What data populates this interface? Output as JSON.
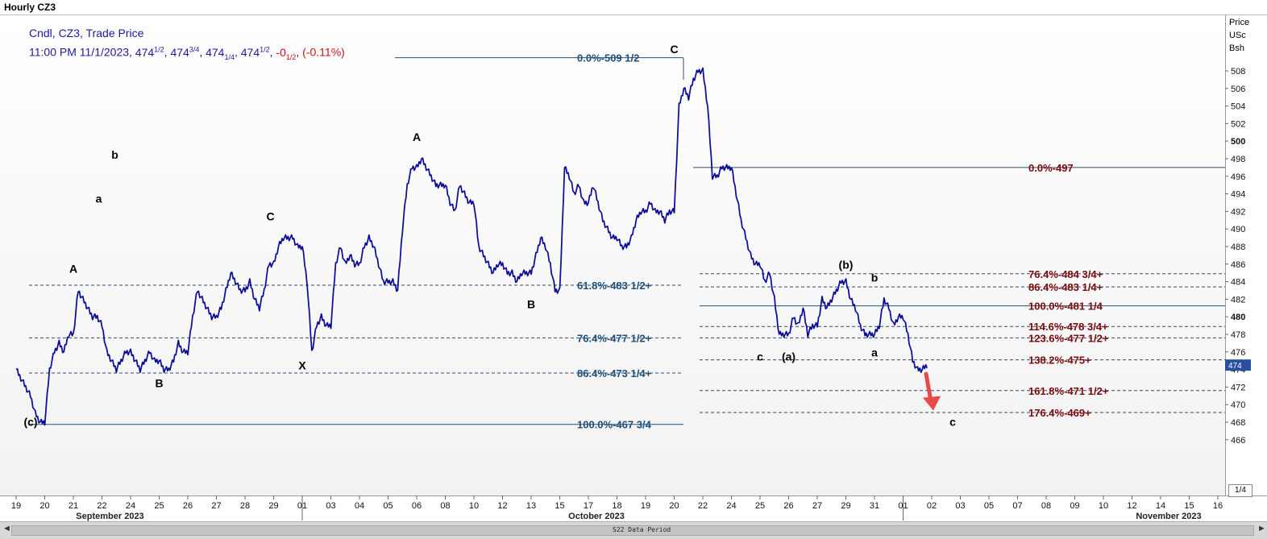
{
  "window_title": "Hourly CZ3",
  "legend": {
    "line1": "Cndl, CZ3, Trade Price",
    "line2_prefix": "11:00 PM 11/1/2023, ",
    "open_int": "474",
    "open_frac": "1/2",
    "high_int": "474",
    "high_frac": "3/4",
    "low_int": "474",
    "low_frac": "1/4",
    "close_int": "474",
    "close_frac": "1/2",
    "change_int": "-0",
    "change_frac": "1/2",
    "change_pct": "(-0.11%)"
  },
  "axis_title": [
    "Price",
    "USc",
    "Bsh"
  ],
  "current_price_label": "474",
  "page_label": "1/4",
  "scroll_left": "◄",
  "scroll_right": "►",
  "data_period_label": "S22 Data Period",
  "colors": {
    "price": "#0a0ab4",
    "fib_blue": "#1f4e79",
    "fib_red": "#7b0a0a",
    "level_line": "#2a4d7a",
    "arrow": "#e84a4a"
  },
  "chart_data": {
    "type": "candlestick",
    "title": "Hourly CZ3",
    "ylabel": "Price USc Bsh",
    "ylim": [
      465,
      511
    ],
    "y_ticks": [
      466,
      468,
      470,
      472,
      474,
      476,
      478,
      480,
      482,
      484,
      486,
      488,
      490,
      492,
      494,
      496,
      498,
      500,
      502,
      504,
      506,
      508
    ],
    "x_ticks": [
      "19",
      "20",
      "21",
      "22",
      "24",
      "25",
      "26",
      "27",
      "28",
      "29",
      "01",
      "03",
      "04",
      "05",
      "06",
      "08",
      "10",
      "12",
      "13",
      "15",
      "17",
      "18",
      "19",
      "20",
      "22",
      "24",
      "25",
      "26",
      "27",
      "29",
      "31",
      "01",
      "02",
      "03",
      "05",
      "07",
      "08",
      "09",
      "10",
      "12",
      "14",
      "15",
      "16"
    ],
    "month_labels": [
      "September 2023",
      "October 2023",
      "November 2023"
    ],
    "price_path": [
      {
        "d": "19",
        "p": [
          474,
          473,
          472,
          471,
          469,
          468
        ]
      },
      {
        "d": "20",
        "p": [
          468,
          474,
          476,
          477,
          476,
          478
        ]
      },
      {
        "d": "21",
        "p": [
          478,
          483,
          482,
          481,
          480,
          480
        ]
      },
      {
        "d": "22",
        "p": [
          479,
          476,
          475,
          474,
          475,
          476
        ]
      },
      {
        "d": "24",
        "p": [
          476,
          475,
          474,
          475,
          476,
          475
        ]
      },
      {
        "d": "25",
        "p": [
          475,
          474,
          474,
          475,
          477,
          476
        ]
      },
      {
        "d": "26",
        "p": [
          476,
          480,
          483,
          482,
          481,
          480
        ]
      },
      {
        "d": "27",
        "p": [
          480,
          481,
          483,
          485,
          484,
          483
        ]
      },
      {
        "d": "28",
        "p": [
          483,
          484,
          482,
          481,
          483,
          486
        ]
      },
      {
        "d": "29",
        "p": [
          486,
          488,
          489,
          489,
          489,
          488
        ]
      },
      {
        "d": "01",
        "p": [
          488,
          484,
          476,
          479,
          480,
          479
        ]
      },
      {
        "d": "03",
        "p": [
          479,
          486,
          488,
          486,
          487,
          486
        ]
      },
      {
        "d": "04",
        "p": [
          486,
          488,
          489,
          488,
          486,
          484
        ]
      },
      {
        "d": "05",
        "p": [
          484,
          484,
          483,
          490,
          495,
          497
        ]
      },
      {
        "d": "06",
        "p": [
          497,
          498,
          497,
          496,
          495,
          495
        ]
      },
      {
        "d": "08",
        "p": [
          495,
          493,
          492,
          495,
          494,
          493
        ]
      },
      {
        "d": "10",
        "p": [
          493,
          488,
          487,
          486,
          485,
          486
        ]
      },
      {
        "d": "12",
        "p": [
          486,
          485,
          485,
          484,
          485,
          485
        ]
      },
      {
        "d": "13",
        "p": [
          485,
          487,
          489,
          488,
          486,
          483
        ]
      },
      {
        "d": "15",
        "p": [
          483,
          497,
          496,
          494,
          495,
          493
        ]
      },
      {
        "d": "17",
        "p": [
          493,
          495,
          493,
          491,
          490,
          489
        ]
      },
      {
        "d": "18",
        "p": [
          489,
          488,
          488,
          489,
          491,
          492
        ]
      },
      {
        "d": "19",
        "p": [
          492,
          493,
          492,
          492,
          491,
          492
        ]
      },
      {
        "d": "20",
        "p": [
          492,
          504,
          506,
          505,
          507,
          508
        ]
      },
      {
        "d": "22",
        "p": [
          508,
          504,
          496,
          496,
          497,
          497
        ]
      },
      {
        "d": "24",
        "p": [
          497,
          494,
          491,
          489,
          487,
          486
        ]
      },
      {
        "d": "25",
        "p": [
          486,
          484,
          485,
          482,
          478,
          478
        ]
      },
      {
        "d": "26",
        "p": [
          478,
          480,
          479,
          481,
          478,
          479
        ]
      },
      {
        "d": "27",
        "p": [
          479,
          482,
          481,
          482,
          483,
          484
        ]
      },
      {
        "d": "29",
        "p": [
          484,
          482,
          481,
          479,
          478,
          478
        ]
      },
      {
        "d": "31",
        "p": [
          478,
          479,
          482,
          481,
          479,
          480
        ]
      },
      {
        "d": "01",
        "p": [
          480,
          478,
          475,
          474,
          474,
          474.5
        ]
      }
    ],
    "annotations": {
      "fib_left": [
        {
          "pct": "0.0%",
          "price": "509 1/2",
          "value": 509.5
        },
        {
          "pct": "61.8%",
          "price": "483 1/2+",
          "value": 483.6
        },
        {
          "pct": "76.4%",
          "price": "477 1/2+",
          "value": 477.6
        },
        {
          "pct": "86.4%",
          "price": "473 1/4+",
          "value": 473.6
        },
        {
          "pct": "100.0%",
          "price": "467 3/4",
          "value": 467.75
        }
      ],
      "fib_right": [
        {
          "pct": "0.0%",
          "price": "497",
          "value": 497
        },
        {
          "pct": "76.4%",
          "price": "484 3/4+",
          "value": 484.9
        },
        {
          "pct": "86.4%",
          "price": "483 1/4+",
          "value": 483.4
        },
        {
          "pct": "100.0%",
          "price": "481 1/4",
          "value": 481.25
        },
        {
          "pct": "114.6%",
          "price": "478 3/4+",
          "value": 478.9
        },
        {
          "pct": "123.6%",
          "price": "477 1/2+",
          "value": 477.6
        },
        {
          "pct": "138.2%",
          "price": "475+",
          "value": 475.1
        },
        {
          "pct": "161.8%",
          "price": "471 1/2+",
          "value": 471.6
        },
        {
          "pct": "176.4%",
          "price": "469+",
          "value": 469.1
        }
      ],
      "wave_labels": [
        {
          "text": "A",
          "d": "21",
          "price": 485
        },
        {
          "text": "B",
          "d": "25",
          "price": 472
        },
        {
          "text": "C",
          "d": "29",
          "price": 491
        },
        {
          "text": "X",
          "d": "01",
          "price": 474
        },
        {
          "text": "A",
          "d": "06",
          "price": 500
        },
        {
          "text": "B",
          "d": "13",
          "price": 481
        },
        {
          "text": "C",
          "d": "20",
          "price": 510
        },
        {
          "text": "a",
          "d": "22",
          "price": 493
        },
        {
          "text": "b",
          "d": "22",
          "price": 498
        },
        {
          "text": "c",
          "d": "25",
          "price": 475
        },
        {
          "text": "(a)",
          "d": "26",
          "price": 475
        },
        {
          "text": "(b)",
          "d": "29",
          "price": 485.5
        },
        {
          "text": "a",
          "d": "31",
          "price": 475.5
        },
        {
          "text": "b",
          "d": "31",
          "price": 484
        },
        {
          "text": "(c)",
          "d": "01",
          "price": 467.6
        },
        {
          "text": "c",
          "d": "02",
          "price": 467.6
        }
      ]
    }
  }
}
